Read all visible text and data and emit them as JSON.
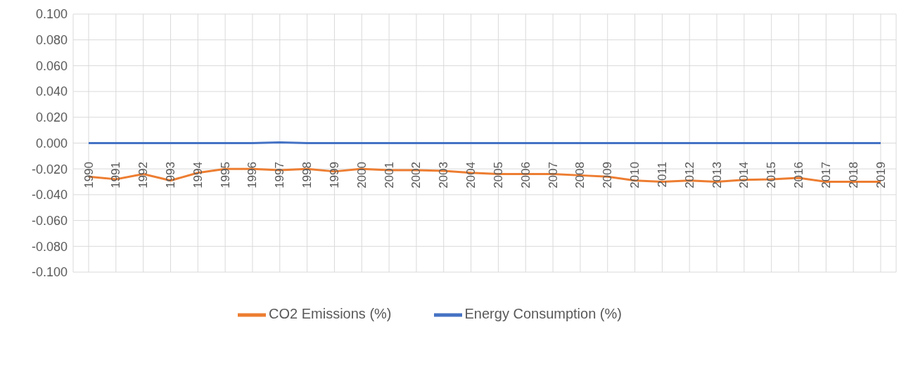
{
  "chart_data": {
    "type": "line",
    "categories": [
      "1990",
      "1991",
      "1992",
      "1993",
      "1994",
      "1995",
      "1996",
      "1997",
      "1998",
      "1999",
      "2000",
      "2001",
      "2002",
      "2003",
      "2004",
      "2005",
      "2006",
      "2007",
      "2008",
      "2009",
      "2010",
      "2011",
      "2012",
      "2013",
      "2014",
      "2015",
      "2016",
      "2017",
      "2018",
      "2019"
    ],
    "series": [
      {
        "name": "Energy Consumption (%)",
        "color": "#4472c4",
        "values": [
          0,
          0,
          0,
          0,
          0,
          0,
          0,
          0.0005,
          0,
          0,
          0,
          0,
          0,
          0,
          0,
          0,
          0,
          0,
          0,
          0,
          0,
          0,
          0,
          0,
          0,
          0,
          0,
          0,
          0,
          0
        ]
      },
      {
        "name": "CO2 Emissions (%)",
        "color": "#ed7d31",
        "values": [
          -0.026,
          -0.028,
          -0.024,
          -0.029,
          -0.023,
          -0.02,
          -0.02,
          -0.021,
          -0.02,
          -0.022,
          -0.02,
          -0.021,
          -0.021,
          -0.0215,
          -0.023,
          -0.024,
          -0.024,
          -0.024,
          -0.025,
          -0.026,
          -0.029,
          -0.03,
          -0.029,
          -0.03,
          -0.0285,
          -0.028,
          -0.027,
          -0.03,
          -0.03,
          -0.03
        ]
      }
    ],
    "ylim": [
      -0.1,
      0.1
    ],
    "yticks": [
      {
        "value": -0.1,
        "label": "-0.100"
      },
      {
        "value": -0.08,
        "label": "-0.080"
      },
      {
        "value": -0.06,
        "label": "-0.060"
      },
      {
        "value": -0.04,
        "label": "-0.040"
      },
      {
        "value": -0.02,
        "label": "-0.020"
      },
      {
        "value": 0,
        "label": "0.000"
      },
      {
        "value": 0.02,
        "label": "0.020"
      },
      {
        "value": 0.04,
        "label": "0.040"
      },
      {
        "value": 0.06,
        "label": "0.060"
      },
      {
        "value": 0.08,
        "label": "0.080"
      },
      {
        "value": 0.1,
        "label": "0.100"
      }
    ],
    "grid": true,
    "legend": "bottom",
    "marker": "none",
    "line_style": "solid"
  }
}
